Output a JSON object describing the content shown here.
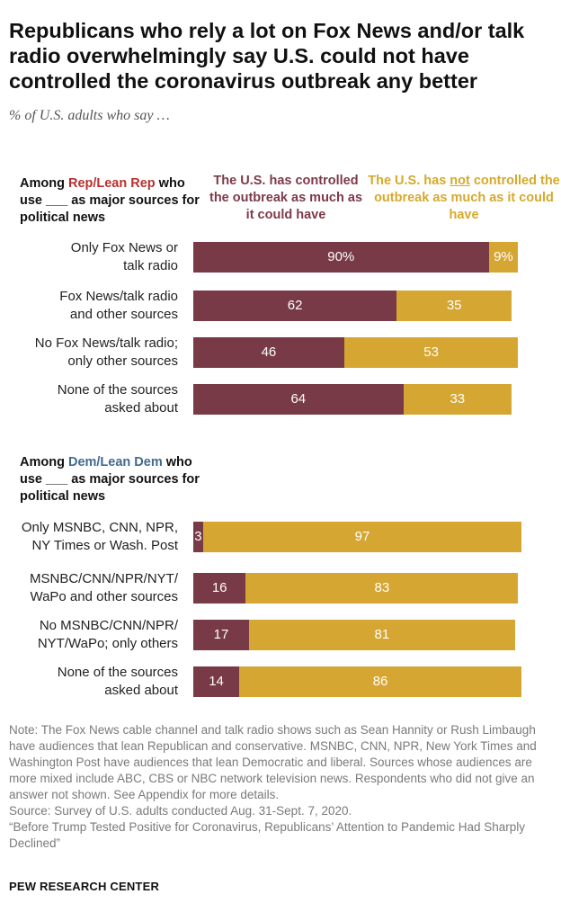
{
  "title": "Republicans who rely a lot on Fox News and/or talk radio overwhelmingly say U.S. could not have controlled the coronavirus outbreak any better",
  "subtitle": "% of U.S. adults who say …",
  "legend": {
    "a": "The U.S. has controlled the outbreak as much as it could have",
    "b_pre": "The U.S. has ",
    "b_not": "not",
    "b_post": " controlled the outbreak as much as it could have"
  },
  "colors": {
    "a": "#773a46",
    "b": "#d5a632",
    "rep": "#b7302f",
    "dem": "#43698f"
  },
  "rep_head": {
    "pre": "Among ",
    "party": "Rep/Lean Rep",
    "post": " who use ___ as major sources for political news"
  },
  "dem_head": {
    "pre": "Among ",
    "party": "Dem/Lean Dem",
    "post": " who use ___ as major sources for political news"
  },
  "note": "Note: The Fox News cable channel and talk radio shows such as Sean Hannity or Rush Limbaugh have audiences that lean Republican and conservative. MSNBC, CNN, NPR, New York Times and Washington Post have audiences that lean Democratic and liberal. Sources whose audiences are more mixed include ABC, CBS or NBC network television news. Respondents who did not give an answer not shown. See Appendix for more details.",
  "source": "Source: Survey of U.S. adults conducted Aug. 31-Sept. 7, 2020.",
  "report": "“Before Trump Tested Positive for Coronavirus, Republicans’ Attention to Pandemic Had Sharply Declined”",
  "brand": "PEW RESEARCH CENTER",
  "chart_data": {
    "type": "bar",
    "orientation": "horizontal",
    "stacked": true,
    "title": "Republicans who rely a lot on Fox News and/or talk radio overwhelmingly say U.S. could not have controlled the coronavirus outbreak any better",
    "series_names": [
      "The U.S. has controlled the outbreak as much as it could have",
      "The U.S. has not controlled the outbreak as much as it could have"
    ],
    "groups": [
      {
        "name": "Rep/Lean Rep",
        "rows": [
          {
            "label_lines": [
              "Only Fox News or",
              "talk radio"
            ],
            "a": 90,
            "b": 9,
            "a_label": "90%",
            "b_label": "9%"
          },
          {
            "label_lines": [
              "Fox News/talk radio",
              "and other sources"
            ],
            "a": 62,
            "b": 35,
            "a_label": "62",
            "b_label": "35"
          },
          {
            "label_lines": [
              "No Fox News/talk radio;",
              "only other sources"
            ],
            "a": 46,
            "b": 53,
            "a_label": "46",
            "b_label": "53"
          },
          {
            "label_lines": [
              "None of the sources",
              "asked about"
            ],
            "a": 64,
            "b": 33,
            "a_label": "64",
            "b_label": "33"
          }
        ]
      },
      {
        "name": "Dem/Lean Dem",
        "rows": [
          {
            "label_lines": [
              "Only MSNBC, CNN, NPR,",
              "NY Times or Wash. Post"
            ],
            "a": 3,
            "b": 97,
            "a_label": "3",
            "b_label": "97"
          },
          {
            "label_lines": [
              "MSNBC/CNN/NPR/NYT/",
              "WaPo and other sources"
            ],
            "a": 16,
            "b": 83,
            "a_label": "16",
            "b_label": "83"
          },
          {
            "label_lines": [
              "No MSNBC/CNN/NPR/",
              "NYT/WaPo; only others"
            ],
            "a": 17,
            "b": 81,
            "a_label": "17",
            "b_label": "81"
          },
          {
            "label_lines": [
              "None of the sources",
              "asked about"
            ],
            "a": 14,
            "b": 86,
            "a_label": "14",
            "b_label": "86"
          }
        ]
      }
    ]
  }
}
